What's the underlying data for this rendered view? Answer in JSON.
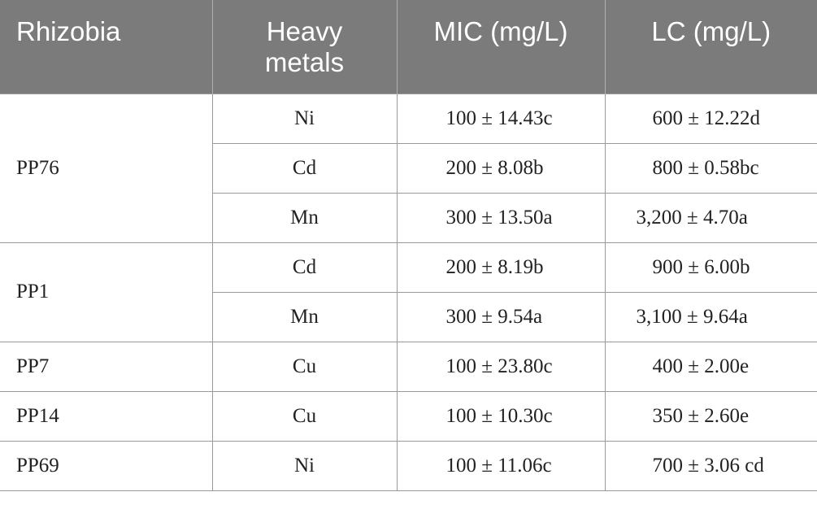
{
  "table": {
    "headers": {
      "rhizobia": "Rhizobia",
      "heavy_metals_line1": "Heavy",
      "heavy_metals_line2": "metals",
      "mic": "MIC (mg/L)",
      "lc": "LC (mg/L)"
    },
    "groups": [
      {
        "rhizobia": "PP76",
        "rows": [
          {
            "metal": "Ni",
            "mic": "100 ± 14.43c",
            "lc": "600 ± 12.22d"
          },
          {
            "metal": "Cd",
            "mic": "200 ± 8.08b",
            "lc": "800 ± 0.58bc"
          },
          {
            "metal": "Mn",
            "mic": "300 ± 13.50a",
            "lc": "3,200 ± 4.70a"
          }
        ]
      },
      {
        "rhizobia": "PP1",
        "rows": [
          {
            "metal": "Cd",
            "mic": "200 ± 8.19b",
            "lc": "900 ± 6.00b"
          },
          {
            "metal": "Mn",
            "mic": "300 ± 9.54a",
            "lc": "3,100 ± 9.64a"
          }
        ]
      },
      {
        "rhizobia": "PP7",
        "rows": [
          {
            "metal": "Cu",
            "mic": "100 ± 23.80c",
            "lc": "400 ± 2.00e"
          }
        ]
      },
      {
        "rhizobia": "PP14",
        "rows": [
          {
            "metal": "Cu",
            "mic": "100 ± 10.30c",
            "lc": "350 ± 2.60e"
          }
        ]
      },
      {
        "rhizobia": "PP69",
        "rows": [
          {
            "metal": "Ni",
            "mic": "100 ± 11.06c",
            "lc": "700 ± 3.06 cd"
          }
        ]
      }
    ]
  }
}
